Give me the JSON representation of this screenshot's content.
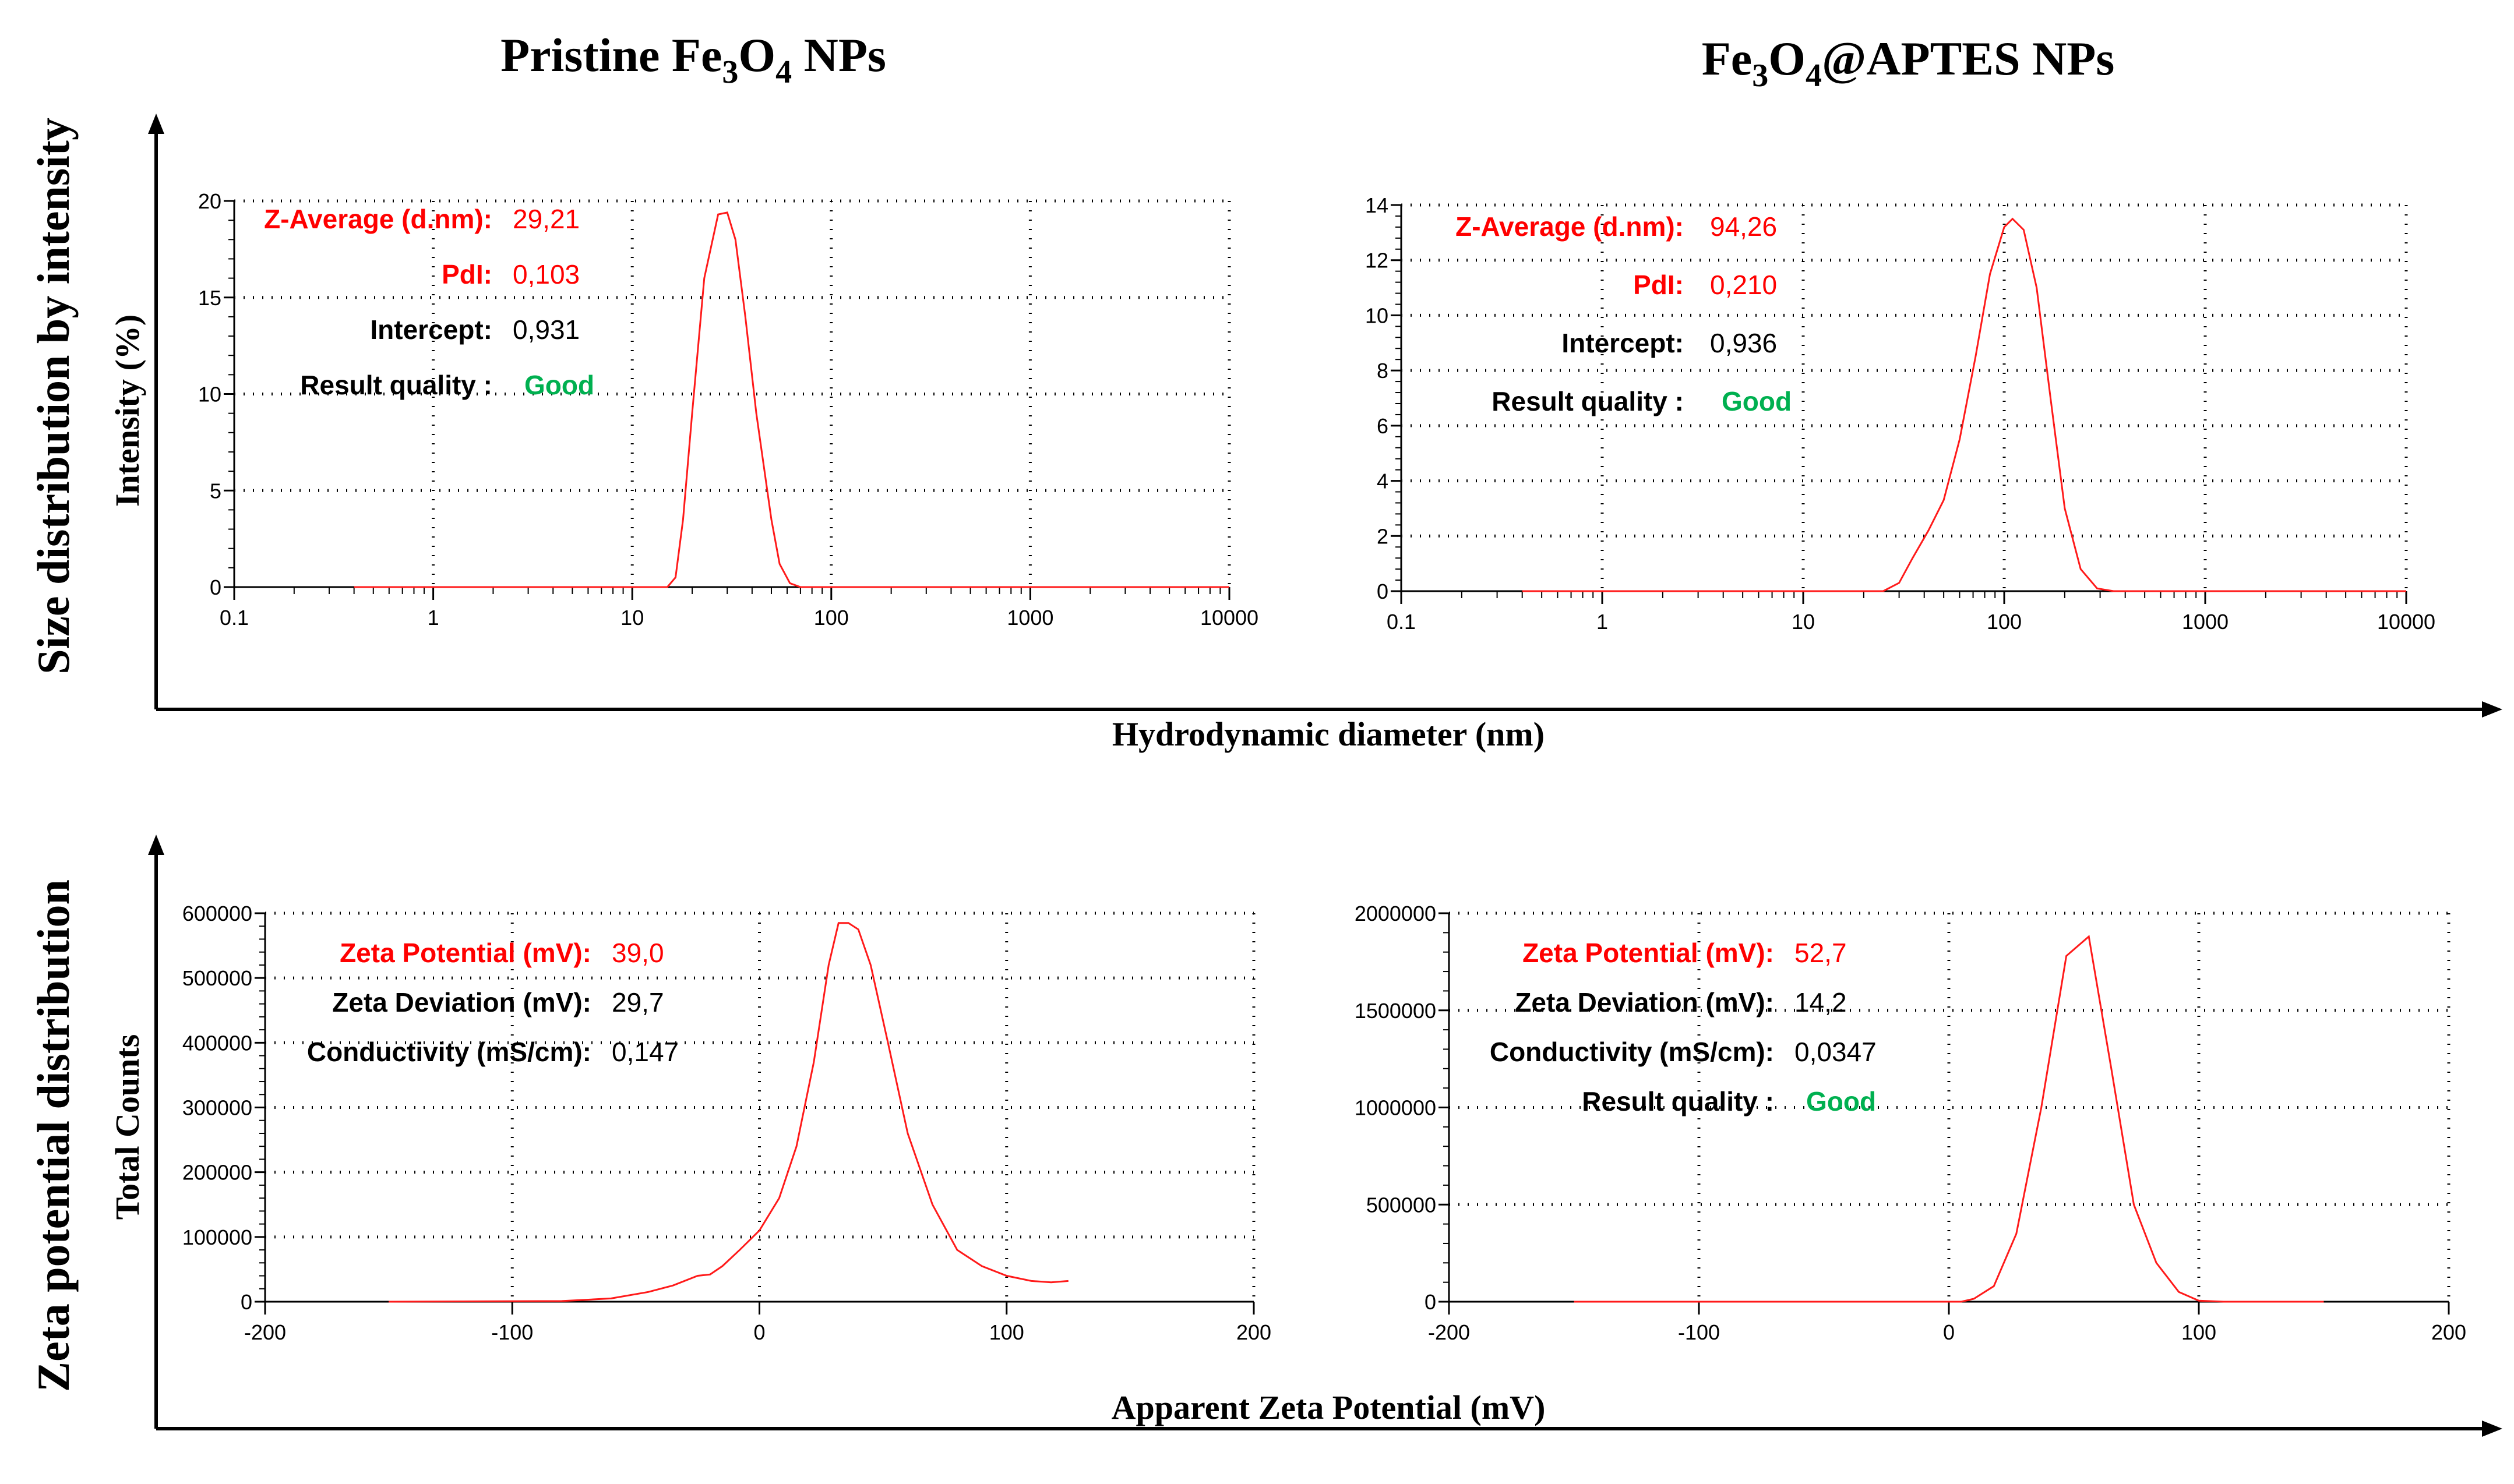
{
  "headers": {
    "left": {
      "prefix": "Pristine Fe",
      "sub1": "3",
      "mid": "O",
      "sub2": "4",
      "suffix": " NPs"
    },
    "right": {
      "prefix": "Fe",
      "sub1": "3",
      "mid": "O",
      "sub2": "4",
      "suffix": "@APTES NPs"
    }
  },
  "row_labels": {
    "top": "Size distribution by intensity",
    "bottom": "Zeta potential distribution"
  },
  "panel_axis_labels": {
    "top_y": "Intensity (%)",
    "bottom_y": "Total Counts"
  },
  "bottom_axis_labels": {
    "top_x": "Hydrodynamic diameter (nm)",
    "bottom_x": "Apparent Zeta Potential (mV)"
  },
  "colors": {
    "curve": "#ff1a1a",
    "red_text": "#ff0000",
    "green_text": "#00b050",
    "black": "#000000"
  },
  "chart_data": [
    {
      "id": "size-pristine",
      "type": "line",
      "xscale": "log",
      "xlim": [
        0.1,
        10000
      ],
      "ylim": [
        0,
        20
      ],
      "xticks": [
        "0.1",
        "1",
        "10",
        "100",
        "1000",
        "10000"
      ],
      "yticks": [
        "0",
        "5",
        "10",
        "15",
        "20"
      ],
      "xlabel": "Hydrodynamic diameter (nm)",
      "ylabel": "Intensity (%)",
      "x": [
        0.4,
        10,
        15,
        16.5,
        18,
        20,
        23,
        27,
        30,
        33,
        37,
        42,
        50,
        55,
        62,
        70,
        100,
        1000,
        10000
      ],
      "y": [
        0,
        0,
        0,
        0.5,
        3.5,
        9,
        16,
        19.3,
        19.4,
        18,
        14,
        9,
        3.5,
        1.2,
        0.2,
        0,
        0,
        0,
        0
      ],
      "annotations": [
        {
          "label": "Z-Average (d.nm):",
          "value": "29,21",
          "label_color": "red",
          "value_color": "red"
        },
        {
          "label": "PdI:",
          "value": "0,103",
          "label_color": "red",
          "value_color": "red"
        },
        {
          "label": "Intercept:",
          "value": "0,931",
          "label_color": "black",
          "value_color": "black"
        },
        {
          "label": "Result quality :",
          "value": "Good",
          "label_color": "black",
          "value_color": "green"
        }
      ]
    },
    {
      "id": "size-aptes",
      "type": "line",
      "xscale": "log",
      "xlim": [
        0.1,
        10000
      ],
      "ylim": [
        0,
        14
      ],
      "xticks": [
        "0.1",
        "1",
        "10",
        "100",
        "1000",
        "10000"
      ],
      "yticks": [
        "0",
        "2",
        "4",
        "6",
        "8",
        "10",
        "12",
        "14"
      ],
      "xlabel": "Hydrodynamic diameter (nm)",
      "ylabel": "Intensity (%)",
      "x": [
        0.4,
        10,
        25,
        30,
        35,
        42,
        50,
        60,
        72,
        85,
        100,
        110,
        125,
        145,
        170,
        200,
        240,
        290,
        350,
        1000,
        10000
      ],
      "y": [
        0,
        0,
        0,
        0.3,
        1.2,
        2.2,
        3.3,
        5.5,
        8.5,
        11.5,
        13.2,
        13.5,
        13.1,
        11,
        7,
        3,
        0.8,
        0.1,
        0,
        0,
        0
      ],
      "annotations": [
        {
          "label": "Z-Average (d.nm):",
          "value": "94,26",
          "label_color": "red",
          "value_color": "red"
        },
        {
          "label": "PdI:",
          "value": "0,210",
          "label_color": "red",
          "value_color": "red"
        },
        {
          "label": "Intercept:",
          "value": "0,936",
          "label_color": "black",
          "value_color": "black"
        },
        {
          "label": "Result quality :",
          "value": "Good",
          "label_color": "black",
          "value_color": "green"
        }
      ]
    },
    {
      "id": "zeta-pristine",
      "type": "line",
      "xscale": "linear",
      "xlim": [
        -200,
        200
      ],
      "ylim": [
        0,
        600000
      ],
      "xticks": [
        "-200",
        "-100",
        "0",
        "100",
        "200"
      ],
      "yticks": [
        "0",
        "100000",
        "200000",
        "300000",
        "400000",
        "500000",
        "600000"
      ],
      "xlabel": "Apparent Zeta Potential (mV)",
      "ylabel": "Total Counts",
      "x": [
        -150,
        -80,
        -60,
        -45,
        -35,
        -25,
        -20,
        -15,
        -8,
        0,
        8,
        15,
        22,
        28,
        32,
        36,
        40,
        45,
        52,
        60,
        70,
        80,
        90,
        100,
        110,
        118,
        125
      ],
      "y": [
        0,
        1000,
        5000,
        15000,
        25000,
        40000,
        42000,
        55000,
        80000,
        110000,
        160000,
        240000,
        370000,
        520000,
        585000,
        585000,
        575000,
        520000,
        400000,
        260000,
        150000,
        80000,
        55000,
        40000,
        32000,
        30000,
        32000
      ],
      "annotations": [
        {
          "label": "Zeta Potential (mV):",
          "value": "39,0",
          "label_color": "red",
          "value_color": "red"
        },
        {
          "label": "Zeta Deviation (mV):",
          "value": "29,7",
          "label_color": "black",
          "value_color": "black"
        },
        {
          "label": "Conductivity (mS/cm):",
          "value": "0,147",
          "label_color": "black",
          "value_color": "black"
        }
      ]
    },
    {
      "id": "zeta-aptes",
      "type": "line",
      "xscale": "linear",
      "xlim": [
        -200,
        200
      ],
      "ylim": [
        0,
        2000000
      ],
      "xticks": [
        "-200",
        "-100",
        "0",
        "100",
        "200"
      ],
      "yticks": [
        "0",
        "500000",
        "1000000",
        "1500000",
        "2000000"
      ],
      "xlabel": "Apparent Zeta Potential (mV)",
      "ylabel": "Total Counts",
      "x": [
        -150,
        0,
        5,
        10,
        18,
        27,
        37,
        47,
        56,
        65,
        74,
        83,
        92,
        100,
        110,
        150
      ],
      "y": [
        0,
        0,
        0,
        15000,
        80000,
        350000,
        1000000,
        1780000,
        1880000,
        1200000,
        500000,
        200000,
        50000,
        5000,
        0,
        0
      ],
      "annotations": [
        {
          "label": "Zeta Potential (mV):",
          "value": "52,7",
          "label_color": "red",
          "value_color": "red"
        },
        {
          "label": "Zeta Deviation (mV):",
          "value": "14,2",
          "label_color": "black",
          "value_color": "black"
        },
        {
          "label": "Conductivity (mS/cm):",
          "value": "0,0347",
          "label_color": "black",
          "value_color": "black"
        },
        {
          "label": "Result quality :",
          "value": "Good",
          "label_color": "black",
          "value_color": "green"
        }
      ]
    }
  ]
}
